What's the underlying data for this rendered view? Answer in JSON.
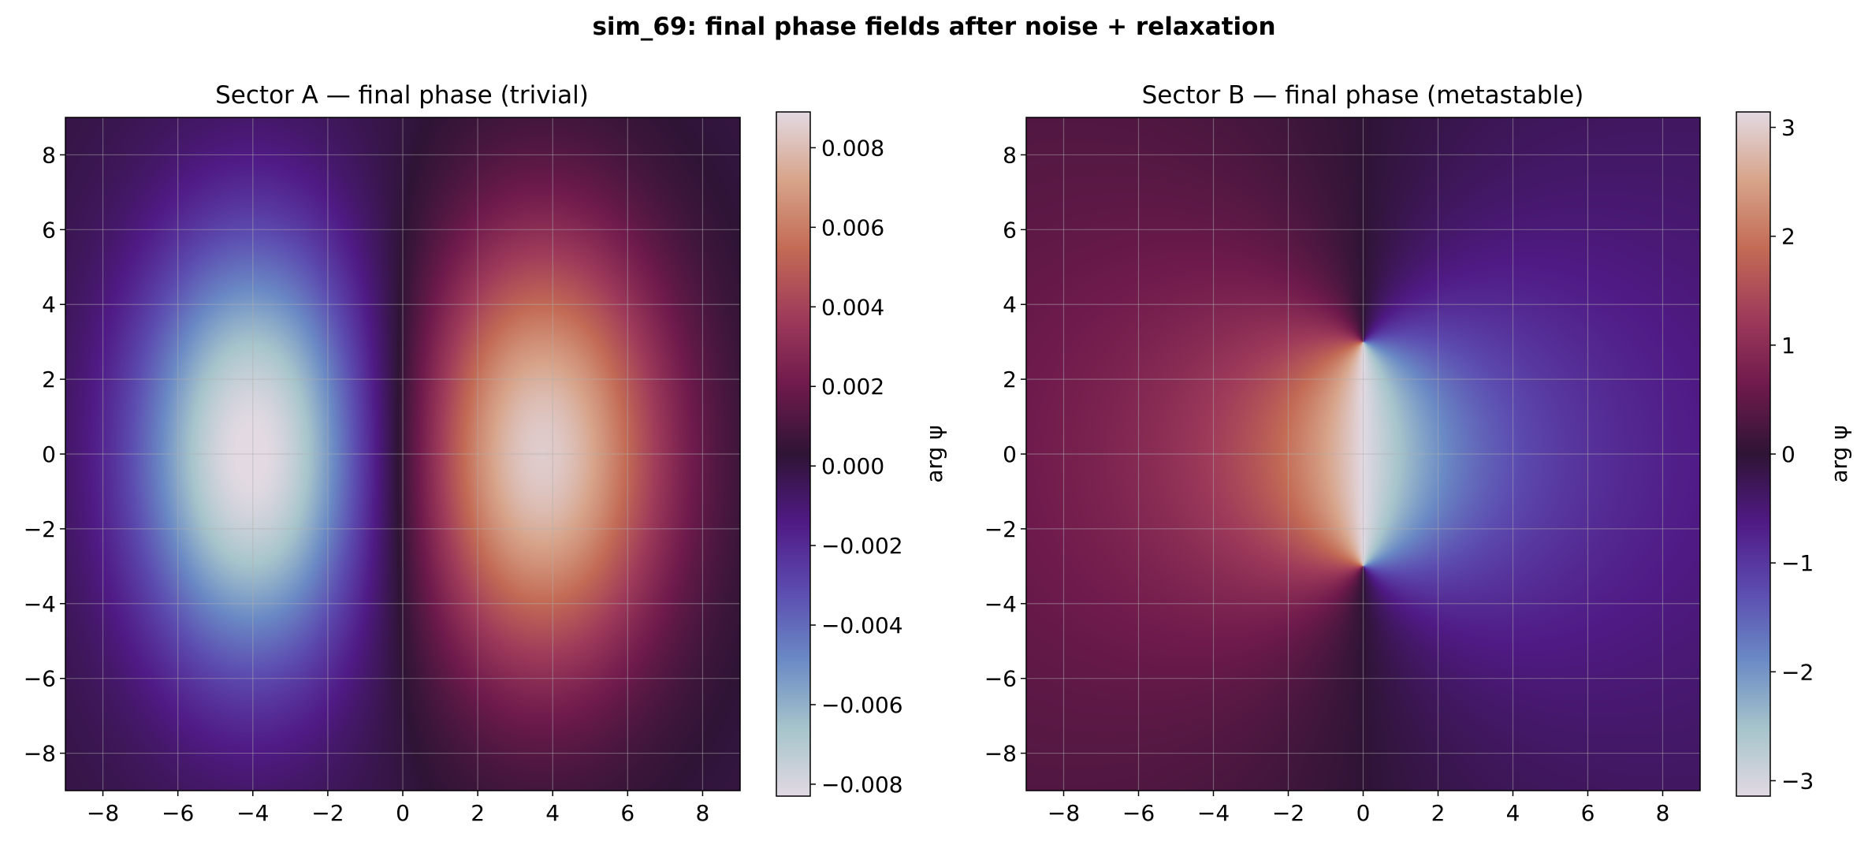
{
  "figure": {
    "suptitle": "sim_69: final phase fields after noise + relaxation"
  },
  "chart_data": [
    {
      "type": "heatmap",
      "title": "Sector A — final phase (trivial)",
      "xlim": [
        -9,
        9
      ],
      "ylim": [
        -9,
        9
      ],
      "xticks": [
        -8,
        -6,
        -4,
        -2,
        0,
        2,
        4,
        6,
        8
      ],
      "yticks": [
        -8,
        -6,
        -4,
        -2,
        0,
        2,
        4,
        6,
        8
      ],
      "xtick_labels": [
        "−8",
        "−6",
        "−4",
        "−2",
        "0",
        "2",
        "4",
        "6",
        "8"
      ],
      "ytick_labels": [
        "−8",
        "−6",
        "−4",
        "−2",
        "0",
        "2",
        "4",
        "6",
        "8"
      ],
      "grid": true,
      "colormap": "twilight_shifted",
      "field": {
        "description_free": true,
        "blobs": [
          {
            "center": [
              -4,
              0
            ],
            "amplitude": -0.0085,
            "sigma_x": 2.3,
            "sigma_y": 4.2
          },
          {
            "center": [
              3.7,
              0
            ],
            "amplitude": 0.0085,
            "sigma_x": 2.4,
            "sigma_y": 4.2
          }
        ]
      },
      "colorbar": {
        "label": "arg ψ",
        "range": [
          -0.0083,
          0.0089
        ],
        "ticks": [
          -0.008,
          -0.006,
          -0.004,
          -0.002,
          0.0,
          0.002,
          0.004,
          0.006,
          0.008
        ],
        "tick_labels": [
          "−0.008",
          "−0.006",
          "−0.004",
          "−0.002",
          "0.000",
          "0.002",
          "0.004",
          "0.006",
          "0.008"
        ]
      }
    },
    {
      "type": "heatmap",
      "title": "Sector B — final phase (metastable)",
      "xlim": [
        -9,
        9
      ],
      "ylim": [
        -9,
        9
      ],
      "xticks": [
        -8,
        -6,
        -4,
        -2,
        0,
        2,
        4,
        6,
        8
      ],
      "yticks": [
        -8,
        -6,
        -4,
        -2,
        0,
        2,
        4,
        6,
        8
      ],
      "xtick_labels": [
        "−8",
        "−6",
        "−4",
        "−2",
        "0",
        "2",
        "4",
        "6",
        "8"
      ],
      "ytick_labels": [
        "−8",
        "−6",
        "−4",
        "−2",
        "0",
        "2",
        "4",
        "6",
        "8"
      ],
      "grid": true,
      "colormap": "twilight_shifted",
      "field": {
        "vortex_pair": [
          {
            "center": [
              0,
              3
            ],
            "charge": 1
          },
          {
            "center": [
              0,
              -3
            ],
            "charge": -1
          }
        ]
      },
      "colorbar": {
        "label": "arg ψ",
        "range": [
          -3.1416,
          3.1416
        ],
        "ticks": [
          -3,
          -2,
          -1,
          0,
          1,
          2,
          3
        ],
        "tick_labels": [
          "−3",
          "−2",
          "−1",
          "0",
          "1",
          "2",
          "3"
        ]
      }
    }
  ],
  "colors": {
    "cmap_stops": [
      "#e2d9e2",
      "#a6c4cb",
      "#6a8ac5",
      "#5c4cb0",
      "#501a85",
      "#2f1436",
      "#6e1a4c",
      "#9f3b5a",
      "#c36b55",
      "#d7a48a",
      "#e2d9e2"
    ],
    "grid": "#b0b0b0",
    "frame": "#000000"
  }
}
